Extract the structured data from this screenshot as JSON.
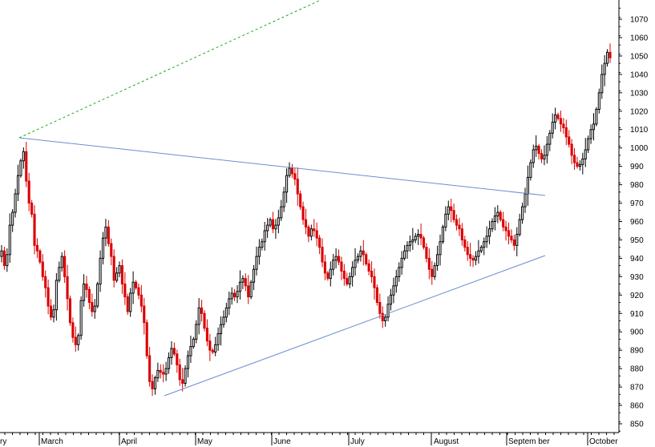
{
  "chart_data": {
    "type": "candlestick",
    "y_axis": {
      "position": "right",
      "ylim": [
        846,
        1080
      ],
      "ticks": [
        850,
        860,
        870,
        880,
        890,
        900,
        910,
        920,
        930,
        940,
        950,
        960,
        970,
        980,
        990,
        1000,
        1010,
        1020,
        1030,
        1040,
        1050,
        1060,
        1070
      ]
    },
    "x_axis": {
      "months": [
        {
          "label": "ry"
        },
        {
          "label": "March"
        },
        {
          "label": "April"
        },
        {
          "label": "May"
        },
        {
          "label": "June"
        },
        {
          "label": "July"
        },
        {
          "label": "August"
        },
        {
          "label": "Septem ber"
        },
        {
          "label": "October"
        }
      ]
    },
    "up_color": "#ffffff",
    "down_color": "#dd0000",
    "outline_color": "#000000",
    "closes": [
      944,
      936,
      942,
      958,
      965,
      975,
      985,
      993,
      998,
      982,
      970,
      964,
      947,
      944,
      938,
      930,
      924,
      914,
      908,
      912,
      928,
      935,
      941,
      930,
      918,
      905,
      897,
      893,
      898,
      917,
      926,
      923,
      916,
      911,
      914,
      926,
      940,
      951,
      957,
      948,
      941,
      928,
      932,
      936,
      926,
      919,
      911,
      921,
      927,
      924,
      920,
      914,
      905,
      887,
      873,
      869,
      875,
      879,
      878,
      877,
      880,
      886,
      891,
      888,
      882,
      874,
      872,
      880,
      887,
      892,
      896,
      904,
      913,
      910,
      902,
      895,
      890,
      889,
      893,
      899,
      904,
      908,
      913,
      918,
      921,
      919,
      922,
      927,
      929,
      925,
      919,
      927,
      934,
      941,
      946,
      949,
      955,
      958,
      961,
      956,
      958,
      962,
      968,
      976,
      985,
      989,
      986,
      983,
      975,
      968,
      961,
      957,
      952,
      956,
      955,
      951,
      946,
      938,
      932,
      929,
      934,
      939,
      941,
      938,
      933,
      929,
      926,
      930,
      935,
      939,
      941,
      944,
      942,
      937,
      933,
      930,
      924,
      916,
      910,
      906,
      908,
      915,
      920,
      925,
      930,
      935,
      940,
      944,
      947,
      949,
      950,
      952,
      953,
      951,
      946,
      940,
      934,
      930,
      936,
      942,
      949,
      957,
      964,
      968,
      966,
      961,
      958,
      956,
      950,
      946,
      942,
      940,
      939,
      941,
      944,
      946,
      949,
      952,
      956,
      960,
      963,
      965,
      961,
      957,
      955,
      952,
      950,
      947,
      953,
      961,
      968,
      975,
      984,
      992,
      999,
      1001,
      997,
      994,
      996,
      1002,
      1008,
      1014,
      1018,
      1016,
      1013,
      1011,
      1006,
      1002,
      996,
      992,
      990,
      991,
      994,
      999,
      1005,
      1010,
      1013,
      1021,
      1030,
      1040,
      1046,
      1052,
      1049
    ]
  }
}
